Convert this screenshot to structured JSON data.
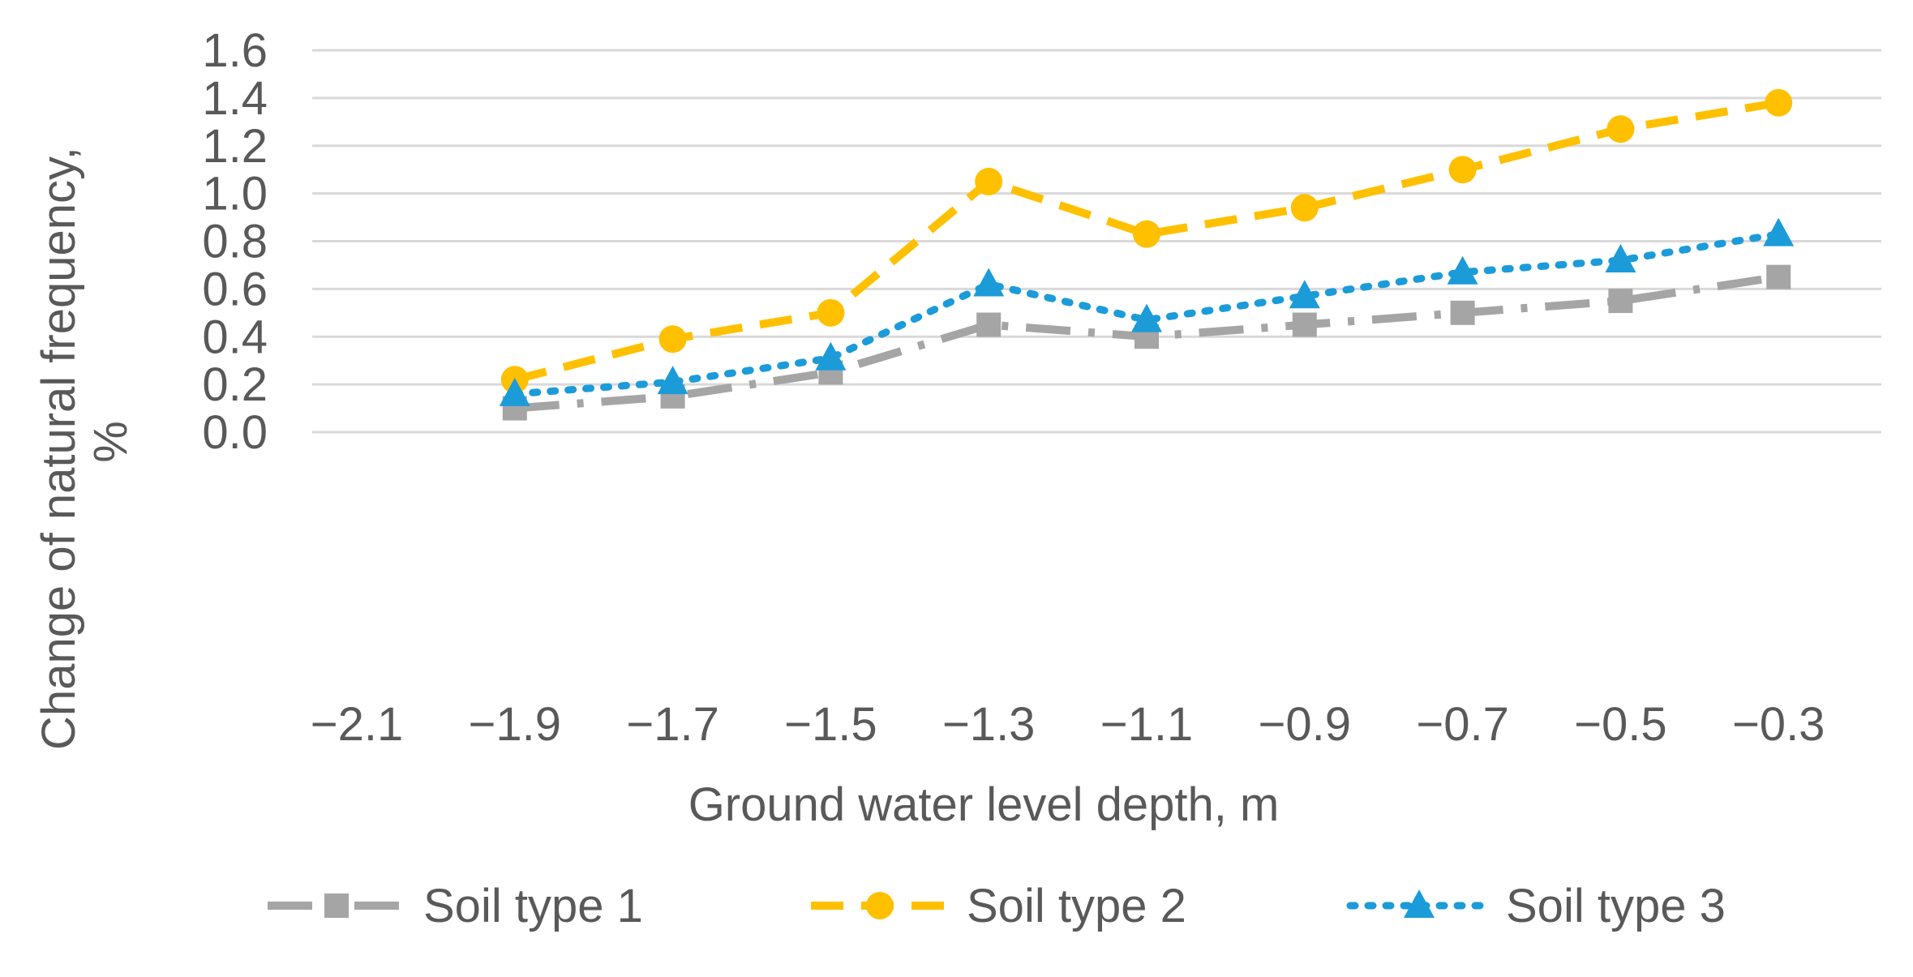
{
  "chart_data": {
    "type": "line",
    "title": "",
    "xlabel": "Ground water level depth, m",
    "ylabel_lines": [
      "Change of natural frequency,",
      "%"
    ],
    "x_tick_labels": [
      "−2.1",
      "−1.9",
      "−1.7",
      "−1.5",
      "−1.3",
      "−1.1",
      "−0.9",
      "−0.7",
      "−0.5",
      "−0.3"
    ],
    "y_tick_labels": [
      "0.0",
      "0.2",
      "0.4",
      "0.6",
      "0.8",
      "1.0",
      "1.2",
      "1.4",
      "1.6"
    ],
    "ylim": [
      0,
      1.6
    ],
    "y_step": 0.2,
    "grid": "horizontal",
    "legend_position": "bottom",
    "series": [
      {
        "name": "Soil type 1",
        "color": "#a5a5a5",
        "line_style": "dash-dot",
        "marker": "square",
        "x": [
          -1.9,
          -1.7,
          -1.5,
          -1.3,
          -1.1,
          -0.9,
          -0.7,
          -0.5,
          -0.3
        ],
        "values": [
          0.1,
          0.15,
          0.25,
          0.45,
          0.4,
          0.45,
          0.5,
          0.55,
          0.65
        ]
      },
      {
        "name": "Soil type 2",
        "color": "#ffc000",
        "line_style": "dashed",
        "marker": "circle",
        "x": [
          -1.9,
          -1.7,
          -1.5,
          -1.3,
          -1.1,
          -0.9,
          -0.7,
          -0.5,
          -0.3
        ],
        "values": [
          0.22,
          0.39,
          0.5,
          1.05,
          0.83,
          0.94,
          1.1,
          1.27,
          1.38
        ]
      },
      {
        "name": "Soil type 3",
        "color": "#1c9bd9",
        "line_style": "dotted",
        "marker": "triangle",
        "x": [
          -1.9,
          -1.7,
          -1.5,
          -1.3,
          -1.1,
          -0.9,
          -0.7,
          -0.5,
          -0.3
        ],
        "values": [
          0.16,
          0.21,
          0.31,
          0.62,
          0.47,
          0.57,
          0.67,
          0.72,
          0.83
        ]
      }
    ]
  }
}
